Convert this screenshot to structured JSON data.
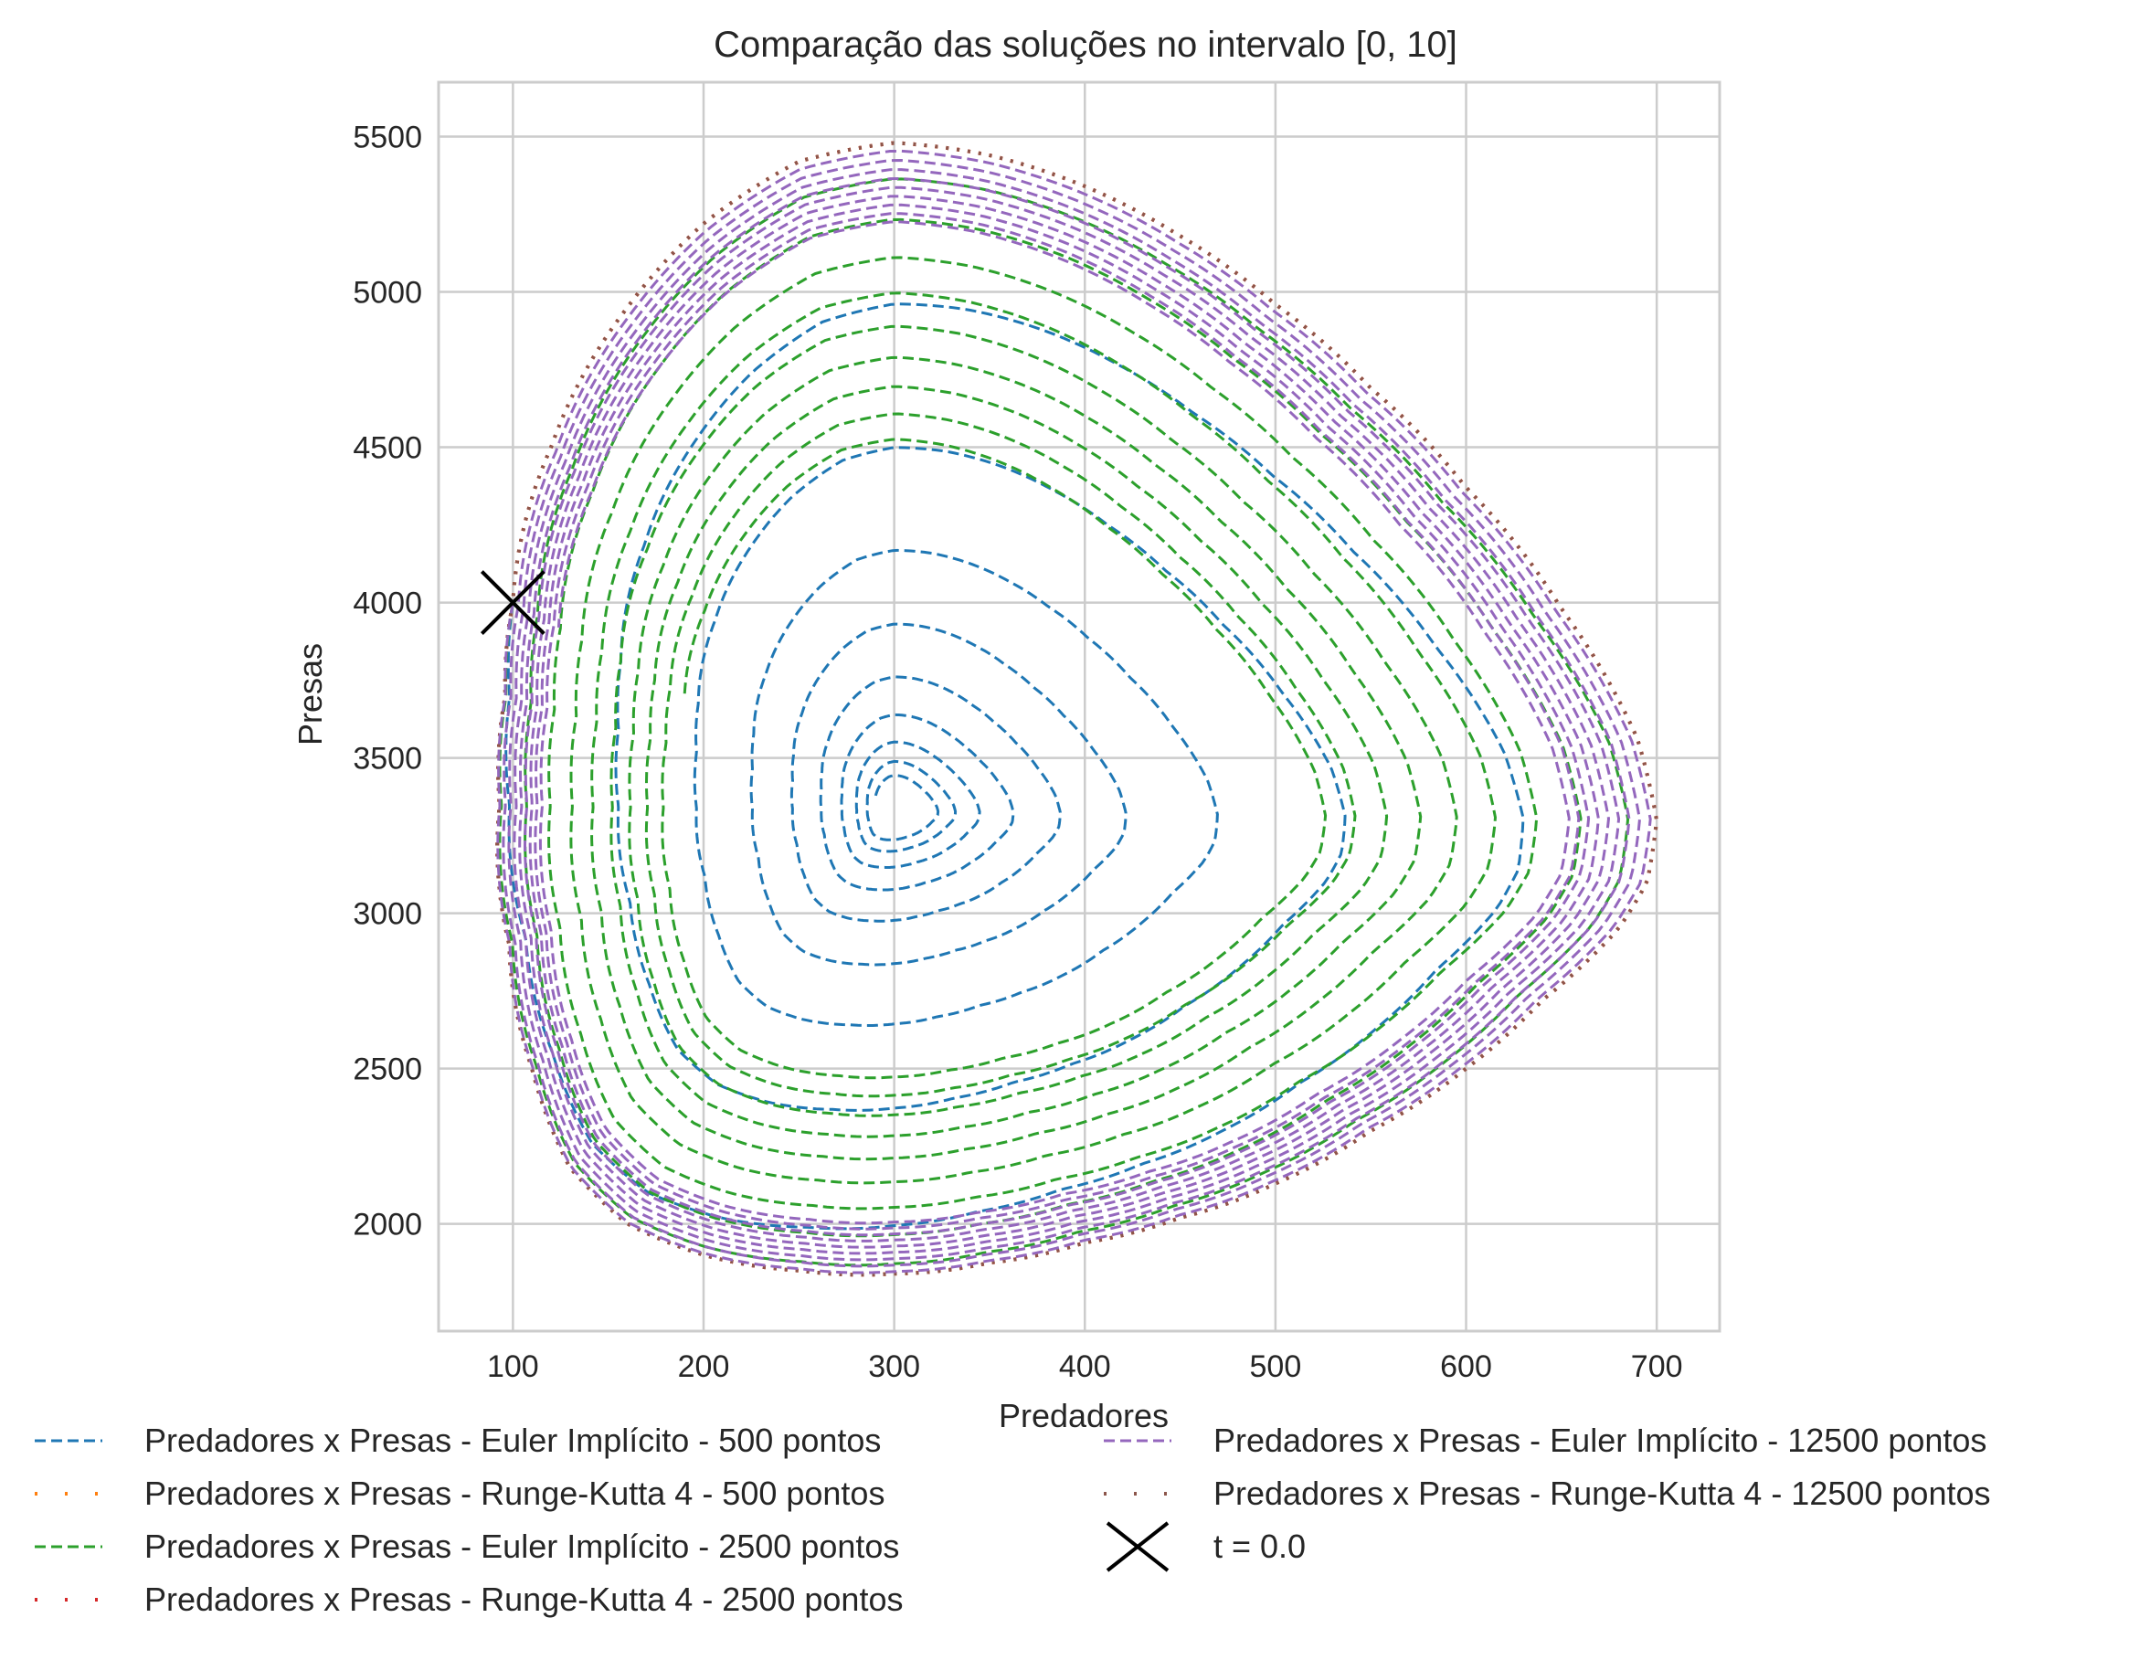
{
  "chart_data": {
    "type": "line",
    "title": "Comparação das soluções no intervalo [0, 10]",
    "xlabel": "Predadores",
    "ylabel": "Presas",
    "xlim": [
      61,
      733
    ],
    "ylim": [
      1655,
      5675
    ],
    "xticks": [
      100,
      200,
      300,
      400,
      500,
      600,
      700
    ],
    "yticks": [
      2000,
      2500,
      3000,
      3500,
      4000,
      4500,
      5000,
      5500
    ],
    "grid": true,
    "legend_position": "below the plot, two columns",
    "start_marker": {
      "label": "t = 0.0",
      "x": 100,
      "y": 4000,
      "marker": "x",
      "color": "#000000"
    },
    "series": [
      {
        "name": "Predadores x Presas - Euler Implícito - 500 pontos",
        "color": "#1f77b4",
        "style": "dashed",
        "amp_start": 1.0,
        "amp_end": 0.05,
        "turns": 9
      },
      {
        "name": "Predadores x Presas - Runge-Kutta 4 - 500 pontos",
        "color": "#ff7f0e",
        "style": "dotted",
        "amp_start": 1.0,
        "amp_end": 1.0,
        "turns": 1
      },
      {
        "name": "Predadores x Presas - Euler Implícito - 2500 pontos",
        "color": "#2ca02c",
        "style": "dashed",
        "amp_start": 1.0,
        "amp_end": 0.55,
        "turns": 9
      },
      {
        "name": "Predadores x Presas - Runge-Kutta 4 - 2500 pontos",
        "color": "#d62728",
        "style": "dotted",
        "amp_start": 1.0,
        "amp_end": 1.0,
        "turns": 1
      },
      {
        "name": "Predadores x Presas - Euler Implícito - 12500 pontos",
        "color": "#9467bd",
        "style": "dashed",
        "amp_start": 1.0,
        "amp_end": 0.88,
        "turns": 9
      },
      {
        "name": "Predadores x Presas - Runge-Kutta 4 - 12500 pontos",
        "color": "#8c564b",
        "style": "dotted",
        "amp_start": 1.0,
        "amp_end": 1.0,
        "turns": 1
      }
    ],
    "orbit_outline": {
      "center": [
        300,
        3330
      ],
      "x": [
        100,
        120,
        160,
        200,
        250,
        300,
        350,
        400,
        450,
        500,
        550,
        600,
        650,
        690,
        700,
        695,
        680,
        640,
        600,
        550,
        500,
        450,
        400,
        350,
        300,
        250,
        200,
        160,
        130,
        110,
        98,
        93,
        96,
        100
      ],
      "y": [
        4000,
        4500,
        4950,
        5220,
        5420,
        5480,
        5440,
        5340,
        5180,
        4960,
        4690,
        4370,
        3980,
        3560,
        3300,
        3100,
        2950,
        2720,
        2500,
        2300,
        2130,
        2020,
        1940,
        1875,
        1840,
        1850,
        1900,
        2000,
        2180,
        2500,
        2900,
        3350,
        3700,
        4000
      ]
    }
  }
}
